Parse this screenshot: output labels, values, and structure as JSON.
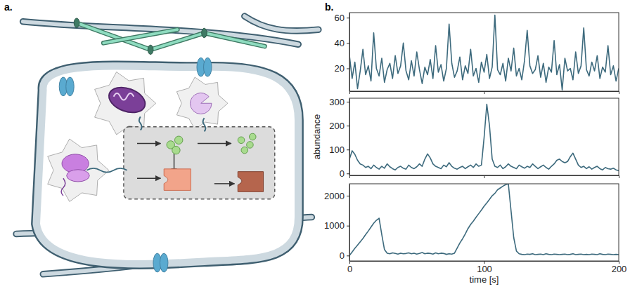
{
  "panel_labels": [
    "a.",
    "b."
  ],
  "chart_data": [
    {
      "type": "line",
      "x": [
        0,
        2,
        4,
        6,
        8,
        10,
        12,
        14,
        16,
        18,
        20,
        22,
        24,
        26,
        28,
        30,
        32,
        34,
        36,
        38,
        40,
        42,
        44,
        46,
        48,
        50,
        52,
        54,
        56,
        58,
        60,
        62,
        64,
        66,
        68,
        70,
        72,
        74,
        76,
        78,
        80,
        82,
        84,
        86,
        88,
        90,
        92,
        94,
        96,
        98,
        100,
        102,
        104,
        106,
        108,
        110,
        112,
        114,
        116,
        118,
        120,
        122,
        124,
        126,
        128,
        130,
        132,
        134,
        136,
        138,
        140,
        142,
        144,
        146,
        148,
        150,
        152,
        154,
        156,
        158,
        160,
        162,
        164,
        166,
        168,
        170,
        172,
        174,
        176,
        178,
        180,
        182,
        184,
        186,
        188,
        190,
        192,
        194,
        196,
        198,
        200
      ],
      "series": [
        {
          "color": "#3d6a7d",
          "values": [
            30,
            12,
            25,
            4,
            18,
            35,
            15,
            22,
            10,
            48,
            20,
            14,
            28,
            9,
            19,
            24,
            12,
            30,
            16,
            22,
            40,
            18,
            11,
            26,
            14,
            33,
            19,
            8,
            21,
            15,
            27,
            12,
            38,
            17,
            23,
            10,
            20,
            55,
            24,
            13,
            18,
            29,
            11,
            22,
            16,
            35,
            14,
            20,
            9,
            25,
            17,
            31,
            12,
            21,
            62,
            19,
            15,
            24,
            10,
            28,
            18,
            36,
            14,
            20,
            11,
            26,
            50,
            22,
            16,
            19,
            30,
            13,
            24,
            9,
            21,
            17,
            42,
            15,
            23,
            3,
            28,
            18,
            20,
            11,
            33,
            16,
            22,
            52,
            19,
            14,
            25,
            18,
            30,
            12,
            21,
            17,
            38,
            15,
            22,
            10,
            20
          ]
        }
      ],
      "xlim": [
        0,
        200
      ],
      "xticks": [
        0,
        100,
        200
      ],
      "ylim": [
        2,
        64
      ],
      "yticks": [
        20,
        40,
        60
      ],
      "tick_labels": "y"
    },
    {
      "type": "line",
      "x": [
        0,
        2,
        4,
        6,
        8,
        10,
        12,
        14,
        16,
        18,
        20,
        22,
        24,
        26,
        28,
        30,
        32,
        34,
        36,
        38,
        40,
        42,
        44,
        46,
        48,
        50,
        52,
        54,
        56,
        58,
        60,
        62,
        64,
        66,
        68,
        70,
        72,
        74,
        76,
        78,
        80,
        82,
        84,
        86,
        88,
        90,
        92,
        94,
        96,
        98,
        100,
        102,
        104,
        106,
        108,
        110,
        112,
        114,
        116,
        118,
        120,
        122,
        124,
        126,
        128,
        130,
        132,
        134,
        136,
        138,
        140,
        142,
        144,
        146,
        148,
        150,
        152,
        154,
        156,
        158,
        160,
        162,
        164,
        166,
        168,
        170,
        172,
        174,
        176,
        178,
        180,
        182,
        184,
        186,
        188,
        190,
        192,
        194,
        196,
        198,
        200
      ],
      "series": [
        {
          "color": "#3d6a7d",
          "values": [
            60,
            95,
            80,
            55,
            40,
            35,
            25,
            30,
            20,
            35,
            25,
            18,
            30,
            22,
            40,
            28,
            20,
            15,
            25,
            30,
            22,
            18,
            35,
            25,
            20,
            28,
            40,
            30,
            60,
            82,
            65,
            40,
            30,
            25,
            20,
            35,
            28,
            45,
            30,
            22,
            18,
            25,
            30,
            20,
            28,
            35,
            25,
            40,
            30,
            35,
            150,
            290,
            200,
            60,
            30,
            25,
            35,
            20,
            28,
            40,
            30,
            25,
            20,
            35,
            28,
            22,
            30,
            25,
            40,
            30,
            20,
            28,
            35,
            25,
            18,
            30,
            40,
            55,
            60,
            50,
            45,
            50,
            70,
            85,
            60,
            35,
            25,
            30,
            20,
            28,
            18,
            25,
            30,
            20,
            15,
            25,
            20,
            18,
            22,
            15,
            12
          ]
        }
      ],
      "xlim": [
        0,
        200
      ],
      "xticks": [
        0,
        100,
        200
      ],
      "ylim": [
        -8,
        315
      ],
      "yticks": [
        0,
        100,
        200,
        300
      ],
      "y_label": "abundance",
      "tick_labels": "y"
    },
    {
      "type": "line",
      "x": [
        0,
        2,
        4,
        6,
        8,
        10,
        12,
        14,
        16,
        18,
        20,
        22,
        24,
        26,
        28,
        30,
        32,
        34,
        36,
        38,
        40,
        42,
        44,
        46,
        48,
        50,
        52,
        54,
        56,
        58,
        60,
        62,
        64,
        66,
        68,
        70,
        72,
        74,
        76,
        78,
        80,
        82,
        84,
        86,
        88,
        90,
        92,
        94,
        96,
        98,
        100,
        102,
        104,
        106,
        108,
        110,
        112,
        114,
        116,
        118,
        120,
        122,
        124,
        126,
        128,
        130,
        132,
        134,
        136,
        138,
        140,
        142,
        144,
        146,
        148,
        150,
        152,
        154,
        156,
        158,
        160,
        162,
        164,
        166,
        168,
        170,
        172,
        174,
        176,
        178,
        180,
        182,
        184,
        186,
        188,
        190,
        192,
        194,
        196,
        198,
        200
      ],
      "series": [
        {
          "color": "#3d6a7d",
          "values": [
            0,
            120,
            240,
            350,
            460,
            570,
            700,
            820,
            950,
            1080,
            1180,
            1250,
            700,
            200,
            80,
            60,
            90,
            70,
            50,
            80,
            60,
            70,
            90,
            60,
            80,
            50,
            70,
            100,
            60,
            80,
            70,
            50,
            90,
            60,
            80,
            70,
            40,
            60,
            50,
            80,
            250,
            420,
            560,
            720,
            900,
            1040,
            1150,
            1280,
            1400,
            1520,
            1650,
            1760,
            1880,
            2000,
            2080,
            2200,
            2260,
            2320,
            2370,
            2400,
            1500,
            600,
            150,
            60,
            40,
            30,
            50,
            40,
            60,
            30,
            40,
            50,
            30,
            60,
            40,
            30,
            50,
            40,
            30,
            40,
            50,
            30,
            40,
            60,
            30,
            40,
            50,
            30,
            40,
            30,
            50,
            40,
            30,
            60,
            40,
            30,
            50,
            40,
            30,
            40,
            30
          ]
        }
      ],
      "xlim": [
        0,
        200
      ],
      "xticks": [
        0,
        100,
        200
      ],
      "ylim": [
        -180,
        2400
      ],
      "yticks": [
        0,
        1000,
        2000
      ],
      "x_label": "time [s]"
    }
  ]
}
